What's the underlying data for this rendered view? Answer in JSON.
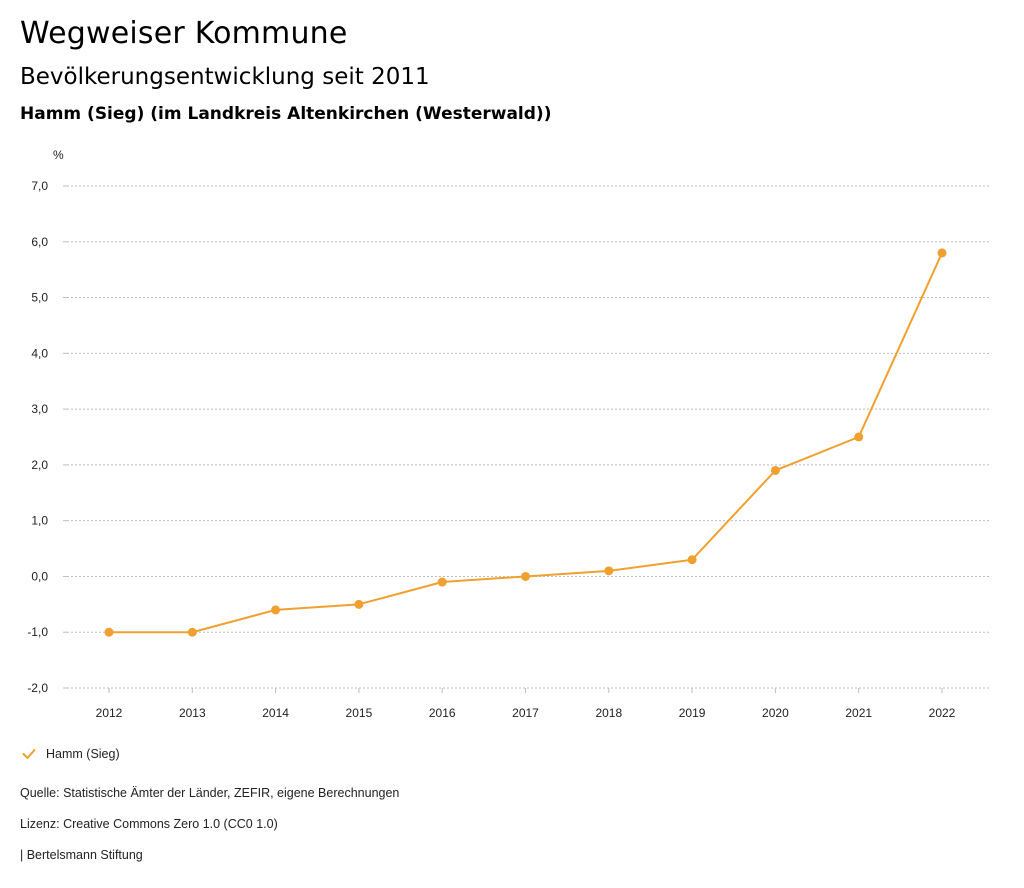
{
  "header": {
    "title": "Wegweiser Kommune",
    "subtitle": "Bevölkerungsentwicklung seit 2011",
    "region": "Hamm (Sieg) (im Landkreis Altenkirchen (Westerwald))"
  },
  "chart_data": {
    "type": "line",
    "unit": "%",
    "x": [
      "2012",
      "2013",
      "2014",
      "2015",
      "2016",
      "2017",
      "2018",
      "2019",
      "2020",
      "2021",
      "2022"
    ],
    "series": [
      {
        "name": "Hamm (Sieg)",
        "color": "#F0A030",
        "values": [
          -1.0,
          -1.0,
          -0.6,
          -0.5,
          -0.1,
          0.0,
          0.1,
          0.3,
          1.9,
          2.5,
          5.8
        ]
      }
    ],
    "yticks": [
      "7,0",
      "6,0",
      "5,0",
      "4,0",
      "3,0",
      "2,0",
      "1,0",
      "0,0",
      "-1,0",
      "-2,0"
    ],
    "ylim": [
      -2,
      7
    ],
    "grid": "horizontal dotted",
    "legend_position": "bottom-left"
  },
  "footer": {
    "source": "Quelle: Statistische Ämter der Länder, ZEFIR, eigene Berechnungen",
    "license": "Lizenz: Creative Commons Zero 1.0 (CC0 1.0)",
    "publisher": "| Bertelsmann Stiftung"
  },
  "legend": {
    "label": "Hamm (Sieg)",
    "icon": "check-icon"
  }
}
